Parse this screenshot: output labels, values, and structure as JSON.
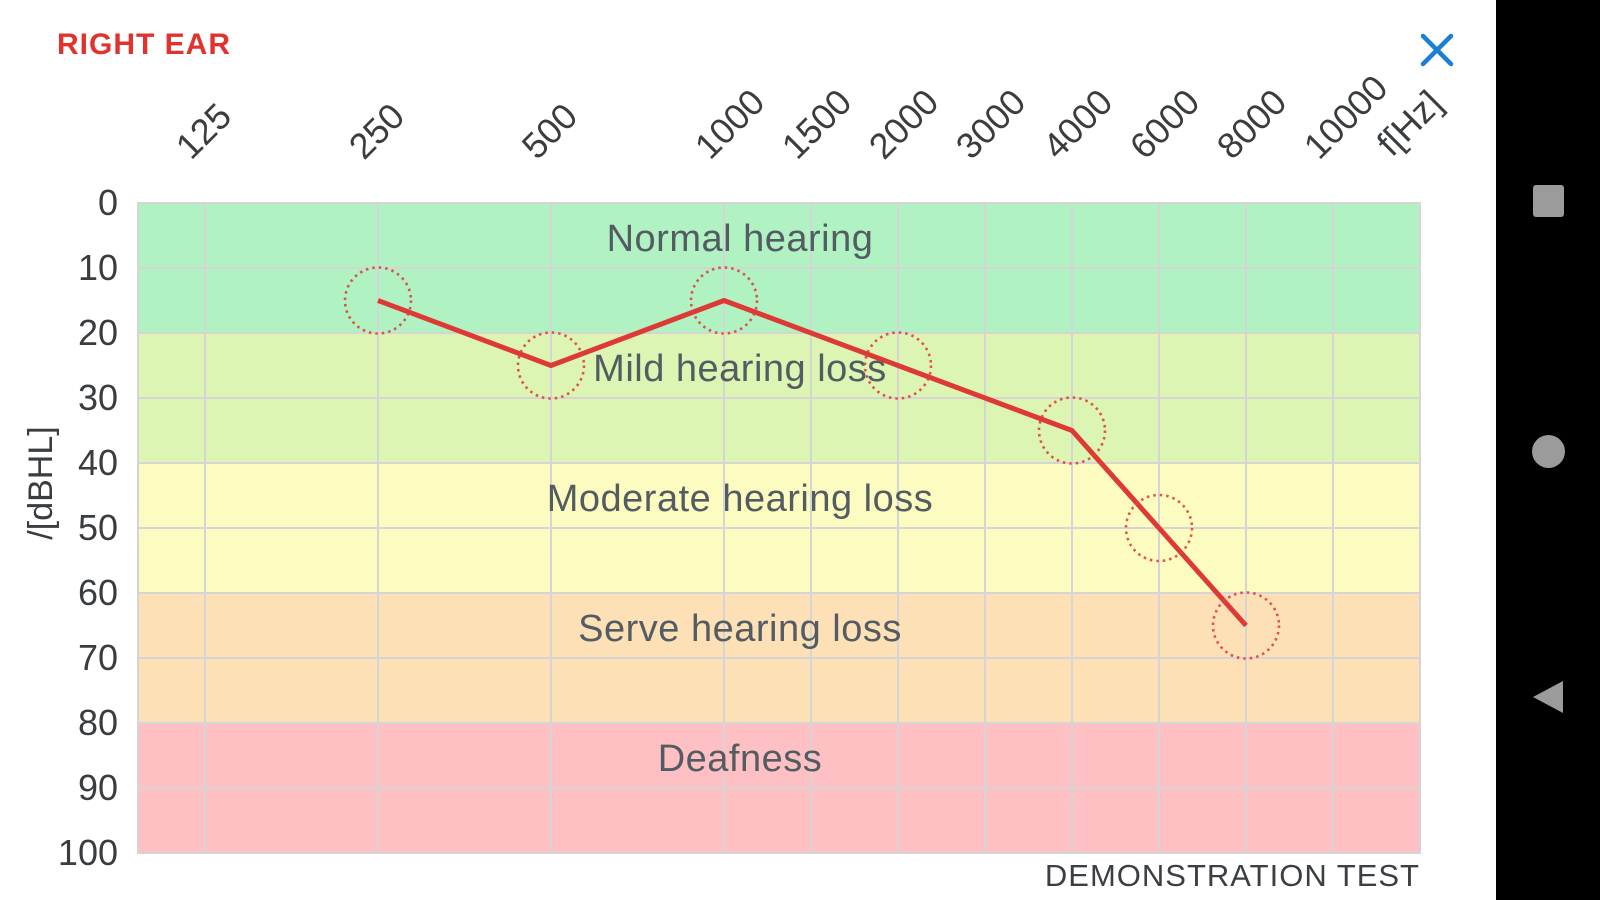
{
  "colors": {
    "accent_red": "#e0332e",
    "line_red": "#de3a35",
    "marker_red": "#e0433f",
    "close_blue": "#1b7fd6",
    "tick_text": "#3a3d40",
    "zone_text": "#545c63",
    "grid": "#d5d5d5",
    "nav_bg": "#000000",
    "nav_icon": "#9b9b9b"
  },
  "icons": {
    "close": "close-x-icon",
    "recents": "recents-square-icon",
    "home": "home-circle-icon",
    "back": "back-triangle-icon"
  },
  "chart_data": {
    "type": "line",
    "title": "RIGHT EAR",
    "footnote": "DEMONSTRATION TEST",
    "x_axis_label": "f[Hz]",
    "y_axis_label": "/[dBHL]",
    "x_categories": [
      "125",
      "250",
      "500",
      "1000",
      "1500",
      "2000",
      "3000",
      "4000",
      "6000",
      "8000",
      "10000"
    ],
    "y_ticks": [
      0,
      10,
      20,
      30,
      40,
      50,
      60,
      70,
      80,
      90,
      100
    ],
    "y_range": [
      0,
      100
    ],
    "grid": "on",
    "zones": [
      {
        "label": "Normal hearing",
        "from_db": 0,
        "to_db": 20,
        "color": "#b0f2c2"
      },
      {
        "label": "Mild hearing loss",
        "from_db": 20,
        "to_db": 40,
        "color": "#dcf5b2"
      },
      {
        "label": "Moderate hearing loss",
        "from_db": 40,
        "to_db": 60,
        "color": "#fdfcc0"
      },
      {
        "label": "Serve hearing loss",
        "from_db": 60,
        "to_db": 80,
        "color": "#fee0b6"
      },
      {
        "label": "Deafness",
        "from_db": 80,
        "to_db": 100,
        "color": "#fec0c2"
      }
    ],
    "series": [
      {
        "name": "right-ear-thresholds",
        "marker": "dashed-circle",
        "points": [
          {
            "hz": "250",
            "db": 15
          },
          {
            "hz": "500",
            "db": 25
          },
          {
            "hz": "1000",
            "db": 15
          },
          {
            "hz": "2000",
            "db": 25
          },
          {
            "hz": "4000",
            "db": 35
          },
          {
            "hz": "6000",
            "db": 50
          },
          {
            "hz": "8000",
            "db": 65
          }
        ]
      }
    ]
  }
}
